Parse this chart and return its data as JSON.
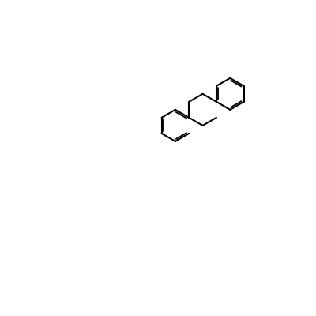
{
  "bg": "#ffffff",
  "bond_color": "#000000",
  "N_color": "#0000cc",
  "O_color": "#cc0000",
  "lw": 1.5,
  "dlw": 1.2,
  "fs": 9,
  "fs_sub": 7
}
